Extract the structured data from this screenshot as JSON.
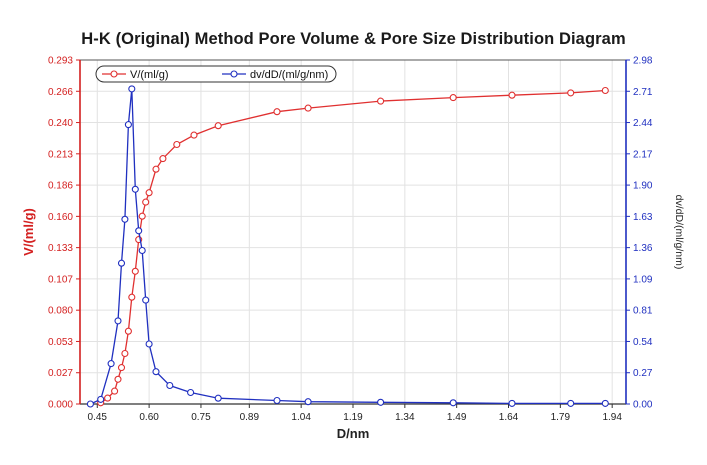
{
  "title": "H-K (Original) Method Pore Volume & Pore Size Distribution Diagram",
  "chart_data": {
    "type": "line",
    "title": "H-K (Original) Method Pore Volume & Pore Size Distribution Diagram",
    "xlabel": "D/nm",
    "ylabel_left": "V/(ml/g)",
    "ylabel_right": "dv/dD/(ml/g/nm)",
    "xlim": [
      0.4,
      1.98
    ],
    "ylim_left": [
      0.0,
      0.293
    ],
    "ylim_right": [
      0.0,
      2.98
    ],
    "x_ticks": [
      "0.45",
      "0.60",
      "0.75",
      "0.89",
      "1.04",
      "1.19",
      "1.34",
      "1.49",
      "1.64",
      "1.79",
      "1.94"
    ],
    "y_ticks_left": [
      "0.000",
      "0.027",
      "0.053",
      "0.080",
      "0.107",
      "0.133",
      "0.160",
      "0.186",
      "0.213",
      "0.240",
      "0.266",
      "0.293"
    ],
    "y_ticks_right": [
      "0.00",
      "0.27",
      "0.54",
      "0.81",
      "1.09",
      "1.36",
      "1.63",
      "1.90",
      "2.17",
      "2.44",
      "2.71",
      "2.98"
    ],
    "legend": [
      "V/(ml/g)",
      "dv/dD/(ml/g/nm)"
    ],
    "legend_position": "top-left",
    "series": [
      {
        "name": "V/(ml/g)",
        "axis": "left",
        "color": "#e03030",
        "x": [
          0.46,
          0.48,
          0.5,
          0.51,
          0.52,
          0.53,
          0.54,
          0.55,
          0.56,
          0.57,
          0.58,
          0.59,
          0.6,
          0.62,
          0.64,
          0.68,
          0.73,
          0.8,
          0.97,
          1.06,
          1.27,
          1.48,
          1.65,
          1.82,
          1.92
        ],
        "values": [
          0.001,
          0.005,
          0.011,
          0.021,
          0.031,
          0.043,
          0.062,
          0.091,
          0.113,
          0.14,
          0.16,
          0.172,
          0.18,
          0.2,
          0.209,
          0.221,
          0.229,
          0.237,
          0.249,
          0.252,
          0.258,
          0.261,
          0.263,
          0.265,
          0.267
        ]
      },
      {
        "name": "dv/dD/(ml/g/nm)",
        "axis": "right",
        "color": "#2030c0",
        "x": [
          0.43,
          0.46,
          0.49,
          0.51,
          0.52,
          0.53,
          0.54,
          0.55,
          0.56,
          0.57,
          0.58,
          0.59,
          0.6,
          0.62,
          0.66,
          0.72,
          0.8,
          0.97,
          1.06,
          1.27,
          1.48,
          1.65,
          1.82,
          1.92
        ],
        "values": [
          0.0,
          0.04,
          0.35,
          0.72,
          1.22,
          1.6,
          2.42,
          2.73,
          1.86,
          1.5,
          1.33,
          0.9,
          0.52,
          0.28,
          0.16,
          0.1,
          0.05,
          0.03,
          0.02,
          0.015,
          0.01,
          0.005,
          0.005,
          0.005
        ]
      }
    ]
  }
}
